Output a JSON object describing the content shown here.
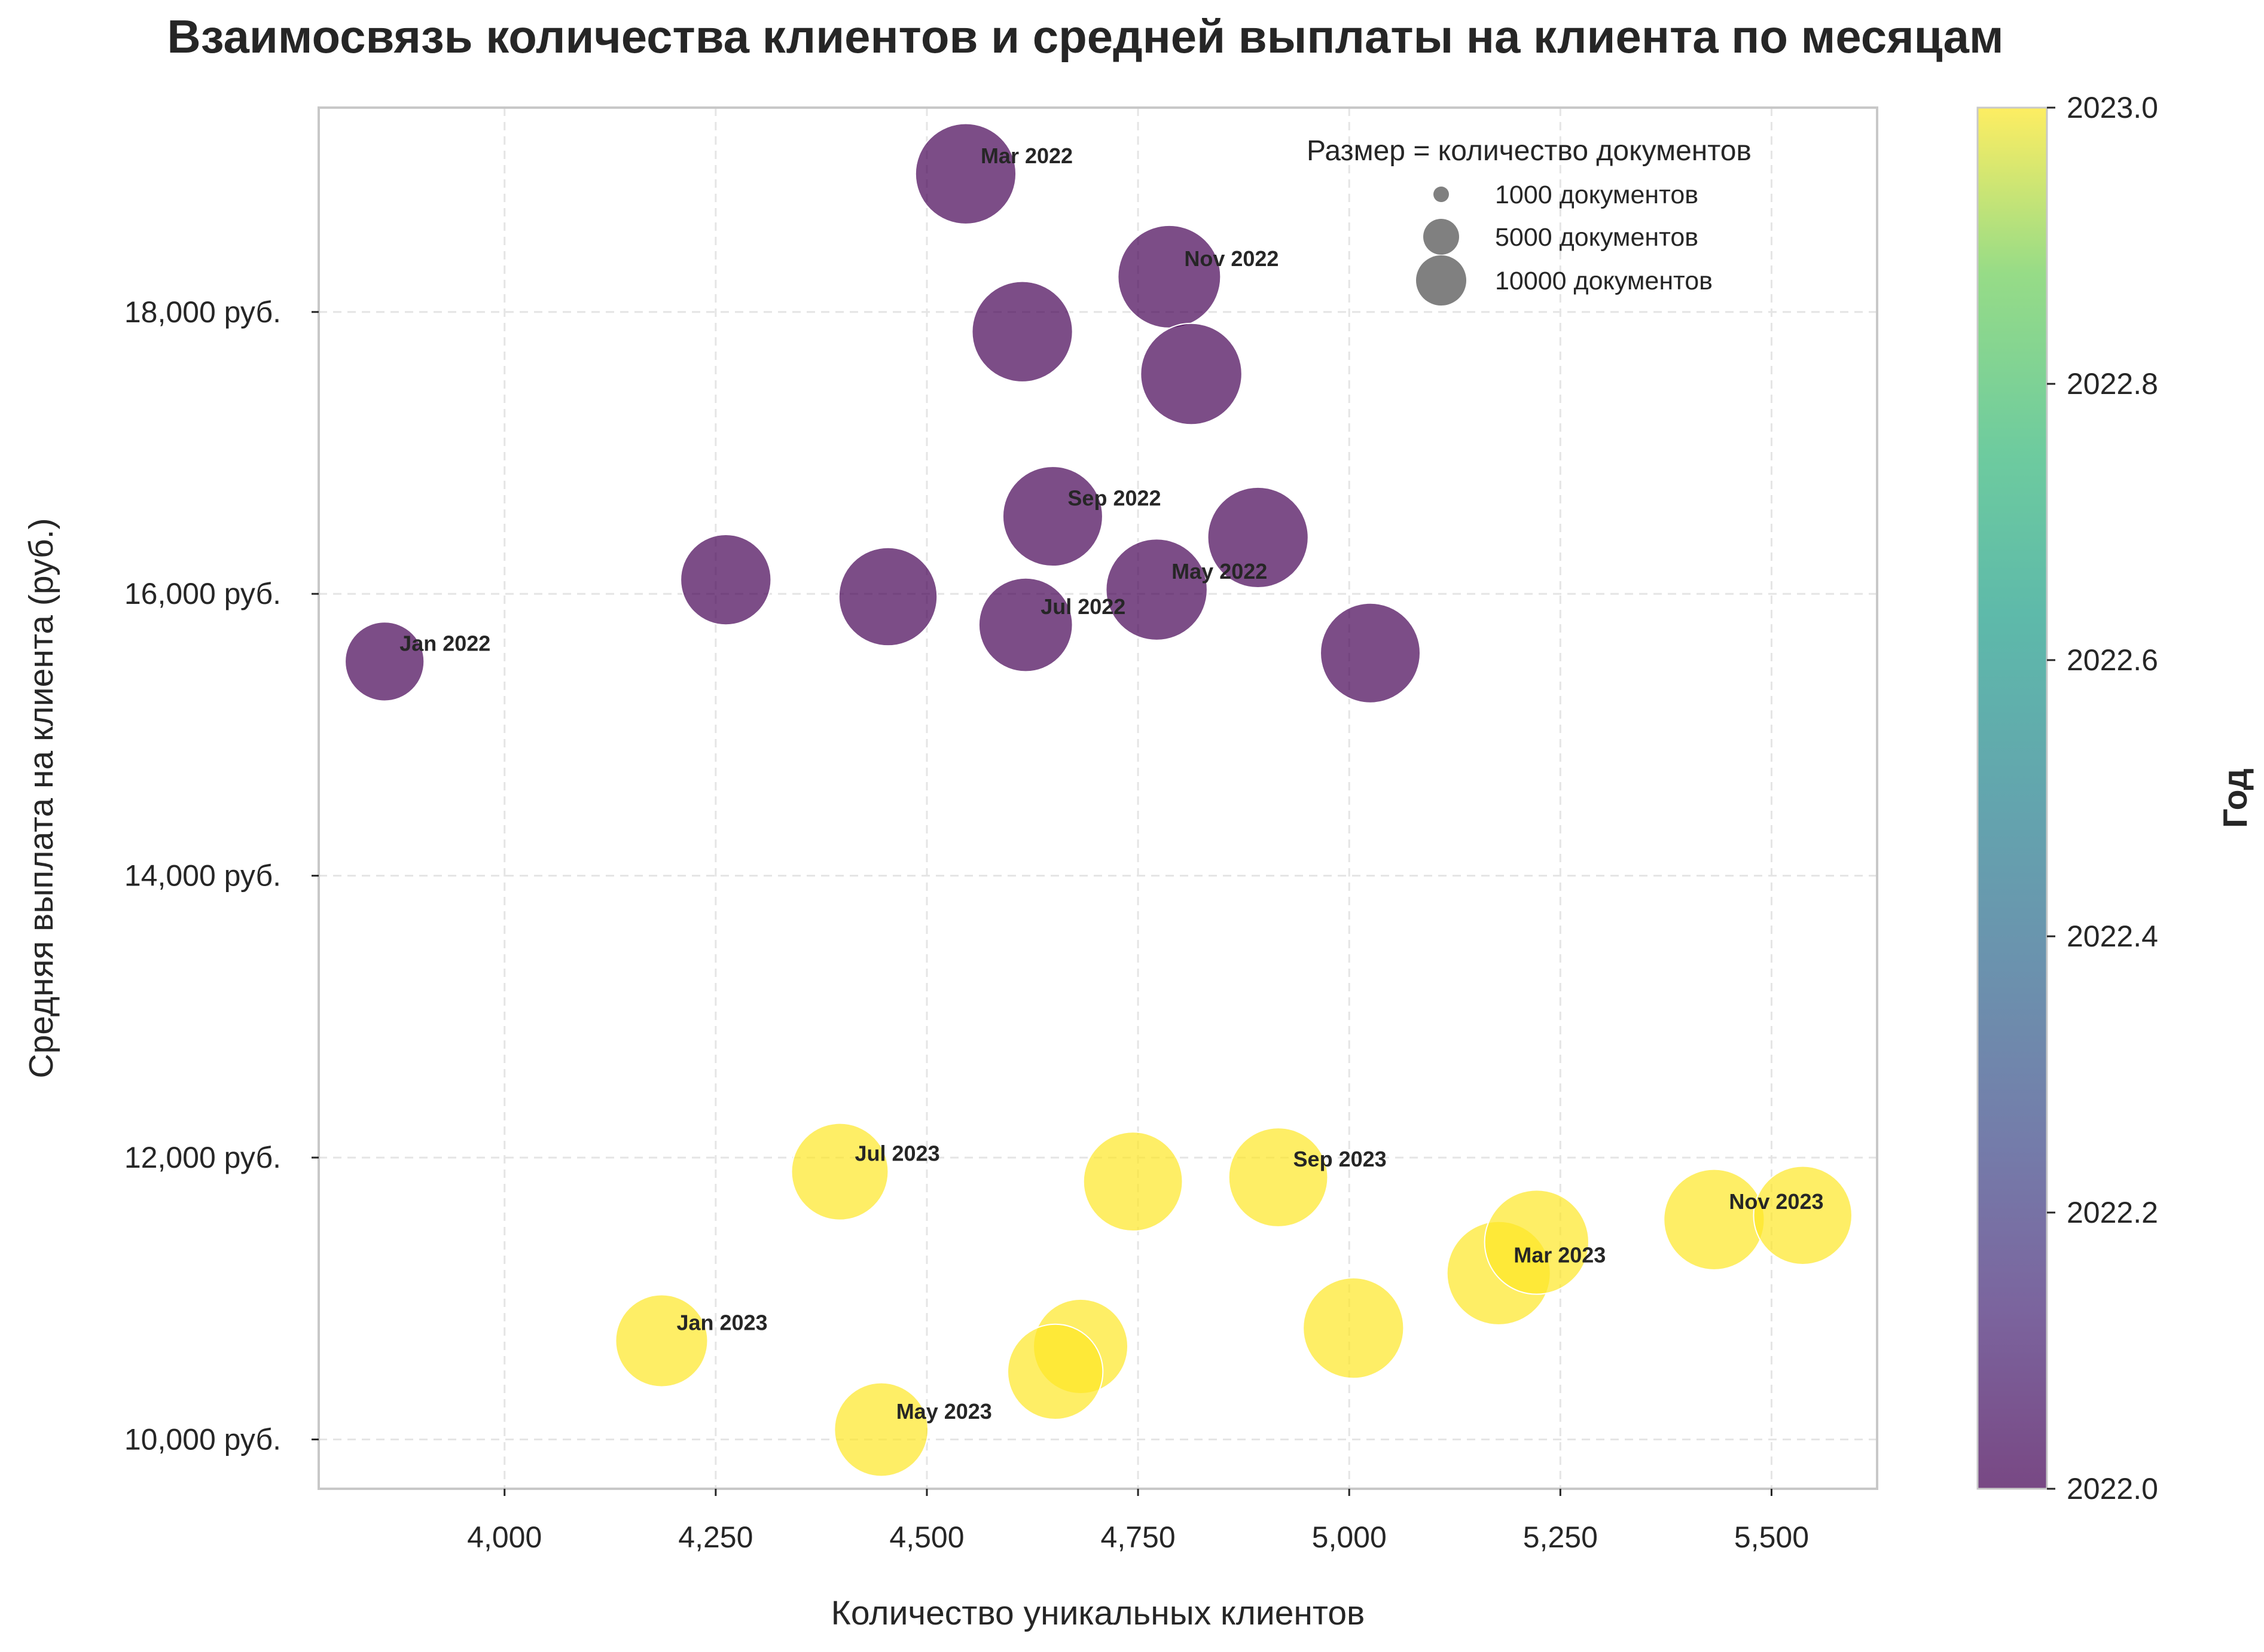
{
  "chart_data": {
    "type": "scatter",
    "title": "Взаимосвязь количества клиентов и средней выплаты на клиента по месяцам",
    "xlabel": "Количество уникальных клиентов",
    "ylabel": "Средняя выплата на клиента (руб.)",
    "xlim": [
      3780,
      5625
    ],
    "ylim": [
      9650,
      19450
    ],
    "x_ticks": [
      4000,
      4250,
      4500,
      4750,
      5000,
      5250,
      5500
    ],
    "x_tick_labels": [
      "4,000",
      "4,250",
      "4,500",
      "4,750",
      "5,000",
      "5,250",
      "5,500"
    ],
    "y_ticks": [
      10000,
      12000,
      14000,
      16000,
      18000
    ],
    "y_tick_labels": [
      "10,000 руб.",
      "12,000 руб.",
      "14,000 руб.",
      "16,000 руб.",
      "18,000 руб."
    ],
    "grid": true,
    "size_encoding": "количество документов",
    "color_encoding": "Год",
    "points": [
      {
        "label": "Jan 2022",
        "x": 3858,
        "y": 15520,
        "docs": 4200,
        "year": 2022
      },
      {
        "label": "",
        "x": 4262,
        "y": 16100,
        "docs": 5500,
        "year": 2022
      },
      {
        "label": "Mar 2022",
        "x": 4546,
        "y": 18980,
        "docs": 6800,
        "year": 2022
      },
      {
        "label": "",
        "x": 4454,
        "y": 15980,
        "docs": 6500,
        "year": 2022
      },
      {
        "label": "May 2022",
        "x": 4772,
        "y": 16030,
        "docs": 6900,
        "year": 2022
      },
      {
        "label": "",
        "x": 4892,
        "y": 16400,
        "docs": 6800,
        "year": 2022
      },
      {
        "label": "Jul 2022",
        "x": 4617,
        "y": 15780,
        "docs": 5900,
        "year": 2022
      },
      {
        "label": "",
        "x": 4613,
        "y": 17860,
        "docs": 6800,
        "year": 2022
      },
      {
        "label": "Sep 2022",
        "x": 4649,
        "y": 16550,
        "docs": 6700,
        "year": 2022
      },
      {
        "label": "",
        "x": 5025,
        "y": 15580,
        "docs": 6700,
        "year": 2022
      },
      {
        "label": "Nov 2022",
        "x": 4787,
        "y": 18250,
        "docs": 7100,
        "year": 2022
      },
      {
        "label": "",
        "x": 4813,
        "y": 17560,
        "docs": 6900,
        "year": 2022
      },
      {
        "label": "Jan 2023",
        "x": 4186,
        "y": 10700,
        "docs": 5700,
        "year": 2023
      },
      {
        "label": "",
        "x": 4682,
        "y": 10660,
        "docs": 6000,
        "year": 2023
      },
      {
        "label": "Mar 2023",
        "x": 5177,
        "y": 11180,
        "docs": 7200,
        "year": 2023
      },
      {
        "label": "",
        "x": 5222,
        "y": 11400,
        "docs": 7300,
        "year": 2023
      },
      {
        "label": "May 2023",
        "x": 4446,
        "y": 10070,
        "docs": 5900,
        "year": 2023
      },
      {
        "label": "",
        "x": 4652,
        "y": 10480,
        "docs": 6100,
        "year": 2023
      },
      {
        "label": "Jul 2023",
        "x": 4397,
        "y": 11900,
        "docs": 6300,
        "year": 2023
      },
      {
        "label": "",
        "x": 4744,
        "y": 11830,
        "docs": 6600,
        "year": 2023
      },
      {
        "label": "Sep 2023",
        "x": 4916,
        "y": 11860,
        "docs": 6600,
        "year": 2023
      },
      {
        "label": "",
        "x": 5005,
        "y": 10790,
        "docs": 6800,
        "year": 2023
      },
      {
        "label": "Nov 2023",
        "x": 5432,
        "y": 11560,
        "docs": 6800,
        "year": 2023
      },
      {
        "label": "",
        "x": 5537,
        "y": 11590,
        "docs": 6500,
        "year": 2023
      }
    ],
    "legend": {
      "title": "Размер = количество документов",
      "placement": "top-right",
      "items": [
        {
          "label": "1000 документов",
          "docs": 1000
        },
        {
          "label": "5000 документов",
          "docs": 5000
        },
        {
          "label": "10000 документов",
          "docs": 10000
        }
      ]
    },
    "colorbar": {
      "label": "Год",
      "min": 2022.0,
      "max": 2023.0,
      "ticks": [
        2022.0,
        2022.2,
        2022.4,
        2022.6,
        2022.8,
        2023.0
      ],
      "tick_labels": [
        "2022.0",
        "2022.2",
        "2022.4",
        "2022.6",
        "2022.8",
        "2023.0"
      ],
      "colormap": "viridis"
    },
    "colors": {
      "year_2022": "#440154",
      "year_2023": "#fde725",
      "legend_marker": "#808080",
      "grid": "#e5e5e5",
      "axes": "#c8c8c8"
    }
  }
}
